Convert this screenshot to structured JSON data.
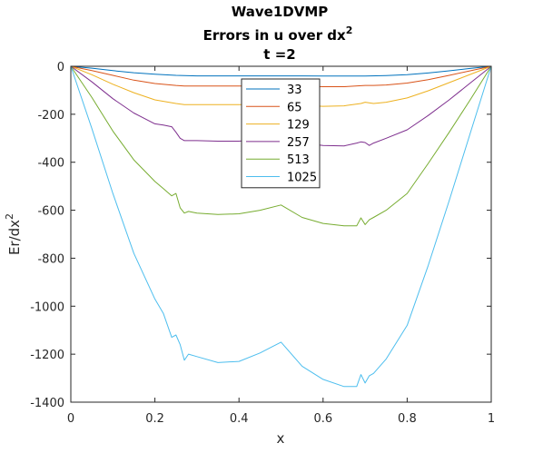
{
  "chart_data": {
    "type": "line",
    "title": [
      "Wave1DVMP",
      "Errors in u over dx",
      "t =2"
    ],
    "title_superscript": "2",
    "xlabel": "x",
    "ylabel": "Er/dx",
    "ylabel_superscript": "2",
    "xlim": [
      0,
      1
    ],
    "ylim": [
      -1400,
      0
    ],
    "xticks": [
      0,
      0.2,
      0.4,
      0.6,
      0.8,
      1
    ],
    "xtick_labels": [
      "0",
      "0.2",
      "0.4",
      "0.6",
      "0.8",
      "1"
    ],
    "yticks": [
      0,
      -200,
      -400,
      -600,
      -800,
      -1000,
      -1200,
      -1400
    ],
    "ytick_labels": [
      "0",
      "-200",
      "-400",
      "-600",
      "-800",
      "-1000",
      "-1200",
      "-1400"
    ],
    "legend_position": "upper-center",
    "series": [
      {
        "name": "33",
        "color": "#0072BD",
        "x": [
          0,
          0.05,
          0.1,
          0.15,
          0.2,
          0.25,
          0.3,
          0.35,
          0.4,
          0.45,
          0.5,
          0.55,
          0.6,
          0.65,
          0.7,
          0.75,
          0.8,
          0.85,
          0.9,
          0.95,
          1
        ],
        "y": [
          0,
          -8,
          -18,
          -27,
          -33,
          -38,
          -40,
          -40,
          -40,
          -40,
          -40,
          -40,
          -41,
          -41,
          -41,
          -39,
          -35,
          -28,
          -19,
          -9,
          0
        ]
      },
      {
        "name": "65",
        "color": "#D95319",
        "x": [
          0,
          0.05,
          0.1,
          0.15,
          0.2,
          0.25,
          0.27,
          0.3,
          0.35,
          0.4,
          0.45,
          0.5,
          0.55,
          0.6,
          0.65,
          0.7,
          0.72,
          0.75,
          0.8,
          0.85,
          0.9,
          0.95,
          1
        ],
        "y": [
          0,
          -18,
          -38,
          -58,
          -72,
          -80,
          -82,
          -82,
          -82,
          -82,
          -82,
          -80,
          -83,
          -85,
          -85,
          -80,
          -80,
          -78,
          -70,
          -56,
          -38,
          -19,
          0
        ]
      },
      {
        "name": "129",
        "color": "#EDB120",
        "x": [
          0,
          0.05,
          0.1,
          0.15,
          0.2,
          0.25,
          0.27,
          0.3,
          0.35,
          0.4,
          0.45,
          0.5,
          0.55,
          0.6,
          0.65,
          0.69,
          0.7,
          0.72,
          0.75,
          0.8,
          0.85,
          0.9,
          0.95,
          1
        ],
        "y": [
          0,
          -35,
          -75,
          -110,
          -140,
          -155,
          -160,
          -160,
          -160,
          -160,
          -160,
          -155,
          -163,
          -167,
          -165,
          -155,
          -150,
          -155,
          -150,
          -132,
          -102,
          -68,
          -34,
          0
        ]
      },
      {
        "name": "257",
        "color": "#7E2F8E",
        "x": [
          0,
          0.05,
          0.1,
          0.15,
          0.2,
          0.22,
          0.24,
          0.25,
          0.26,
          0.27,
          0.3,
          0.35,
          0.4,
          0.45,
          0.5,
          0.55,
          0.6,
          0.65,
          0.68,
          0.69,
          0.7,
          0.71,
          0.72,
          0.75,
          0.8,
          0.85,
          0.9,
          0.95,
          1
        ],
        "y": [
          0,
          -65,
          -135,
          -195,
          -240,
          -245,
          -252,
          -275,
          -300,
          -310,
          -310,
          -312,
          -312,
          -305,
          -295,
          -320,
          -330,
          -332,
          -320,
          -315,
          -318,
          -330,
          -320,
          -300,
          -265,
          -205,
          -140,
          -70,
          0
        ]
      },
      {
        "name": "513",
        "color": "#77AC30",
        "x": [
          0,
          0.05,
          0.1,
          0.15,
          0.2,
          0.22,
          0.24,
          0.25,
          0.26,
          0.27,
          0.28,
          0.3,
          0.35,
          0.4,
          0.45,
          0.5,
          0.55,
          0.6,
          0.65,
          0.68,
          0.69,
          0.7,
          0.71,
          0.72,
          0.75,
          0.8,
          0.85,
          0.9,
          0.95,
          1
        ],
        "y": [
          0,
          -130,
          -270,
          -390,
          -480,
          -510,
          -540,
          -530,
          -590,
          -612,
          -605,
          -612,
          -618,
          -615,
          -600,
          -578,
          -630,
          -655,
          -665,
          -665,
          -632,
          -660,
          -640,
          -630,
          -600,
          -530,
          -405,
          -275,
          -140,
          0
        ]
      },
      {
        "name": "1025",
        "color": "#4DBEEE",
        "x": [
          0,
          0.05,
          0.1,
          0.15,
          0.2,
          0.22,
          0.24,
          0.25,
          0.26,
          0.27,
          0.28,
          0.3,
          0.35,
          0.4,
          0.45,
          0.5,
          0.55,
          0.6,
          0.65,
          0.68,
          0.69,
          0.7,
          0.71,
          0.72,
          0.75,
          0.8,
          0.85,
          0.9,
          0.95,
          1
        ],
        "y": [
          0,
          -260,
          -530,
          -780,
          -970,
          -1030,
          -1130,
          -1120,
          -1160,
          -1225,
          -1200,
          -1210,
          -1235,
          -1230,
          -1195,
          -1150,
          -1250,
          -1305,
          -1335,
          -1335,
          -1285,
          -1320,
          -1290,
          -1280,
          -1220,
          -1080,
          -830,
          -560,
          -280,
          0
        ]
      }
    ]
  }
}
